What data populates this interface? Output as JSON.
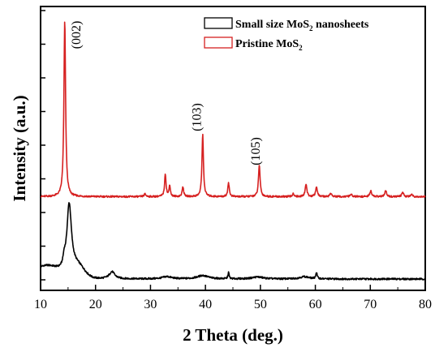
{
  "chart_data": {
    "type": "line",
    "title": "",
    "xlabel": "2 Theta (deg.)",
    "ylabel": "Intensity (a.u.)",
    "xlim": [
      10,
      80
    ],
    "xticks": [
      10,
      20,
      30,
      40,
      50,
      60,
      70,
      80
    ],
    "y_tick_labels_shown": false,
    "ylim": [
      0,
      100
    ],
    "grid": false,
    "legend": {
      "position": "top-right",
      "entries": [
        {
          "prefix": "Small size MoS",
          "sub": "2",
          "suffix": " nanosheets",
          "series": "Small size MoS2 nanosheets"
        },
        {
          "prefix": "Pristine MoS",
          "sub": "2",
          "suffix": "",
          "series": "Pristine MoS2"
        }
      ]
    },
    "series": [
      {
        "name": "Small size MoS2 nanosheets",
        "color": "#000000",
        "baseline": 4,
        "peaks": [
          {
            "x": 15.2,
            "h": 24,
            "w": 0.5
          },
          {
            "x": 14.3,
            "h": 3,
            "w": 0.25
          },
          {
            "x": 23.0,
            "h": 2.5,
            "w": 0.6
          },
          {
            "x": 33.0,
            "h": 0.8,
            "w": 1.0
          },
          {
            "x": 39.5,
            "h": 1.2,
            "w": 1.2
          },
          {
            "x": 44.2,
            "h": 2.3,
            "w": 0.12
          },
          {
            "x": 49.5,
            "h": 0.7,
            "w": 1.2
          },
          {
            "x": 58.0,
            "h": 0.8,
            "w": 1.0
          },
          {
            "x": 60.2,
            "h": 2.2,
            "w": 0.15
          }
        ],
        "background": [
          {
            "x": 11.0,
            "h": 4.5,
            "w": 2.5
          },
          {
            "x": 16.8,
            "h": 4.0,
            "w": 1.2
          }
        ]
      },
      {
        "name": "Pristine MoS2",
        "color": "#d62020",
        "baseline": 33,
        "peaks": [
          {
            "x": 14.4,
            "h": 62,
            "w": 0.18
          },
          {
            "x": 29.0,
            "h": 0.9,
            "w": 0.2
          },
          {
            "x": 32.7,
            "h": 8,
            "w": 0.16
          },
          {
            "x": 33.5,
            "h": 4,
            "w": 0.14
          },
          {
            "x": 35.9,
            "h": 3.5,
            "w": 0.16
          },
          {
            "x": 39.5,
            "h": 22,
            "w": 0.16
          },
          {
            "x": 44.2,
            "h": 5,
            "w": 0.16
          },
          {
            "x": 49.8,
            "h": 11,
            "w": 0.18
          },
          {
            "x": 56.0,
            "h": 1.0,
            "w": 0.2
          },
          {
            "x": 58.3,
            "h": 4.5,
            "w": 0.18
          },
          {
            "x": 60.2,
            "h": 3.5,
            "w": 0.18
          },
          {
            "x": 62.8,
            "h": 1.2,
            "w": 0.2
          },
          {
            "x": 66.5,
            "h": 0.8,
            "w": 0.2
          },
          {
            "x": 70.1,
            "h": 2.0,
            "w": 0.2
          },
          {
            "x": 72.8,
            "h": 2.0,
            "w": 0.2
          },
          {
            "x": 75.9,
            "h": 1.5,
            "w": 0.2
          },
          {
            "x": 77.5,
            "h": 0.9,
            "w": 0.2
          }
        ]
      }
    ],
    "annotations": [
      {
        "text": "(002)",
        "x": 17.2,
        "y": 90
      },
      {
        "text": "(103)",
        "x": 39.2,
        "y": 61
      },
      {
        "text": "(105)",
        "x": 49.9,
        "y": 49
      }
    ]
  }
}
